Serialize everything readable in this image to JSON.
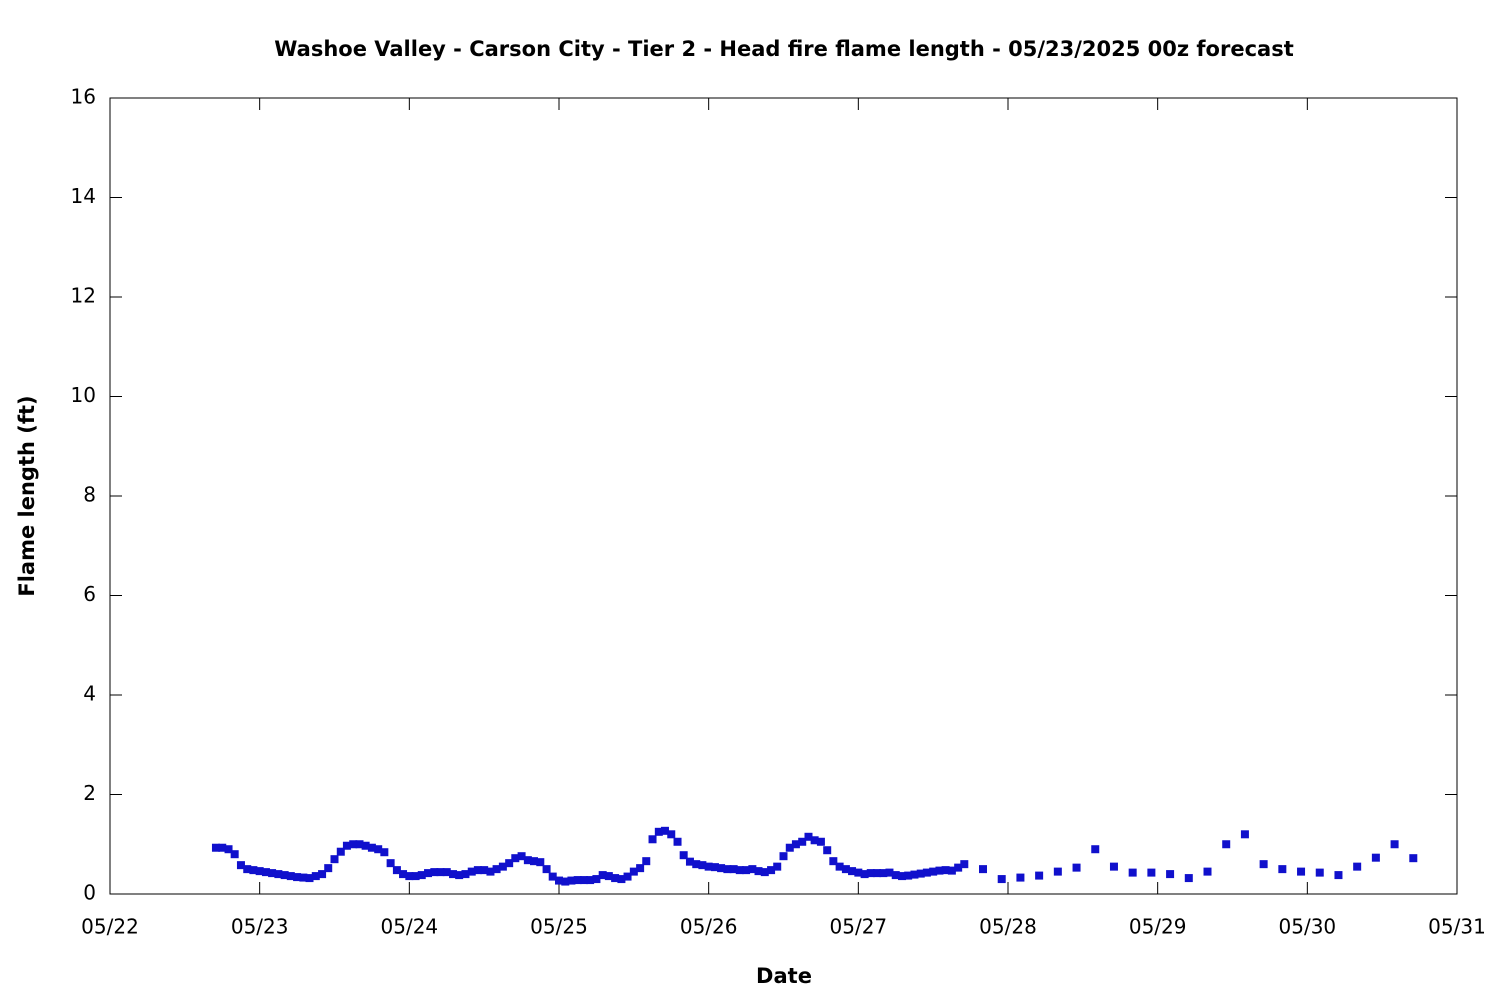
{
  "chart_data": {
    "type": "scatter",
    "title": "Washoe Valley - Carson City - Tier 2 - Head fire flame length - 05/23/2025 00z forecast",
    "xlabel": "Date",
    "ylabel": "Flame length (ft)",
    "color": "#1010cc",
    "x": [
      22.708,
      22.75,
      22.792,
      22.833,
      22.875,
      22.917,
      22.958,
      23,
      23.042,
      23.083,
      23.125,
      23.167,
      23.208,
      23.25,
      23.292,
      23.333,
      23.375,
      23.417,
      23.458,
      23.5,
      23.542,
      23.583,
      23.625,
      23.667,
      23.708,
      23.75,
      23.792,
      23.833,
      23.875,
      23.917,
      23.958,
      24,
      24.042,
      24.083,
      24.125,
      24.167,
      24.208,
      24.25,
      24.292,
      24.333,
      24.375,
      24.417,
      24.458,
      24.5,
      24.542,
      24.583,
      24.625,
      24.667,
      24.708,
      24.75,
      24.792,
      24.833,
      24.875,
      24.917,
      24.958,
      25,
      25.042,
      25.083,
      25.125,
      25.167,
      25.208,
      25.25,
      25.292,
      25.333,
      25.375,
      25.417,
      25.458,
      25.5,
      25.542,
      25.583,
      25.625,
      25.667,
      25.708,
      25.75,
      25.792,
      25.833,
      25.875,
      25.917,
      25.958,
      26,
      26.042,
      26.083,
      26.125,
      26.167,
      26.208,
      26.25,
      26.292,
      26.333,
      26.375,
      26.417,
      26.458,
      26.5,
      26.542,
      26.583,
      26.625,
      26.667,
      26.708,
      26.75,
      26.792,
      26.833,
      26.875,
      26.917,
      26.958,
      27,
      27.042,
      27.083,
      27.125,
      27.167,
      27.208,
      27.25,
      27.292,
      27.333,
      27.375,
      27.417,
      27.458,
      27.5,
      27.542,
      27.583,
      27.625,
      27.667,
      27.708,
      27.833,
      27.958,
      28.083,
      28.208,
      28.333,
      28.458,
      28.583,
      28.708,
      28.833,
      28.958,
      29.083,
      29.208,
      29.333,
      29.458,
      29.583,
      29.708,
      29.833,
      29.958,
      30.083,
      30.208,
      30.333,
      30.458,
      30.583,
      30.708
    ],
    "values": [
      0.93,
      0.93,
      0.9,
      0.8,
      0.58,
      0.5,
      0.48,
      0.46,
      0.44,
      0.42,
      0.4,
      0.38,
      0.36,
      0.34,
      0.33,
      0.32,
      0.36,
      0.4,
      0.52,
      0.7,
      0.85,
      0.97,
      1.0,
      1.0,
      0.97,
      0.93,
      0.9,
      0.84,
      0.62,
      0.48,
      0.4,
      0.36,
      0.36,
      0.38,
      0.42,
      0.44,
      0.44,
      0.44,
      0.4,
      0.38,
      0.4,
      0.45,
      0.48,
      0.48,
      0.45,
      0.5,
      0.55,
      0.62,
      0.72,
      0.76,
      0.68,
      0.66,
      0.64,
      0.5,
      0.35,
      0.27,
      0.25,
      0.27,
      0.28,
      0.28,
      0.28,
      0.3,
      0.38,
      0.36,
      0.32,
      0.3,
      0.35,
      0.45,
      0.52,
      0.66,
      1.1,
      1.25,
      1.27,
      1.2,
      1.05,
      0.78,
      0.65,
      0.6,
      0.58,
      0.55,
      0.54,
      0.52,
      0.5,
      0.5,
      0.48,
      0.48,
      0.5,
      0.46,
      0.44,
      0.48,
      0.55,
      0.76,
      0.93,
      1.0,
      1.05,
      1.15,
      1.08,
      1.05,
      0.88,
      0.66,
      0.55,
      0.5,
      0.46,
      0.43,
      0.4,
      0.42,
      0.42,
      0.42,
      0.43,
      0.38,
      0.36,
      0.37,
      0.39,
      0.41,
      0.43,
      0.45,
      0.47,
      0.48,
      0.47,
      0.53,
      0.6,
      0.5,
      0.3,
      0.33,
      0.37,
      0.45,
      0.53,
      0.9,
      0.55,
      0.43,
      0.43,
      0.4,
      0.32,
      0.45,
      1.0,
      1.2,
      0.6,
      0.5,
      0.45,
      0.43,
      0.38,
      0.55,
      0.73,
      1.0,
      0.72
    ],
    "xlim": [
      22,
      31
    ],
    "xticks": [
      {
        "value": 22,
        "label": "05/22"
      },
      {
        "value": 23,
        "label": "05/23"
      },
      {
        "value": 24,
        "label": "05/24"
      },
      {
        "value": 25,
        "label": "05/25"
      },
      {
        "value": 26,
        "label": "05/26"
      },
      {
        "value": 27,
        "label": "05/27"
      },
      {
        "value": 28,
        "label": "05/28"
      },
      {
        "value": 29,
        "label": "05/29"
      },
      {
        "value": 30,
        "label": "05/30"
      },
      {
        "value": 31,
        "label": "05/31"
      }
    ],
    "ylim": [
      0,
      16
    ],
    "yticks": [
      0,
      2,
      4,
      6,
      8,
      10,
      12,
      14,
      16
    ]
  }
}
